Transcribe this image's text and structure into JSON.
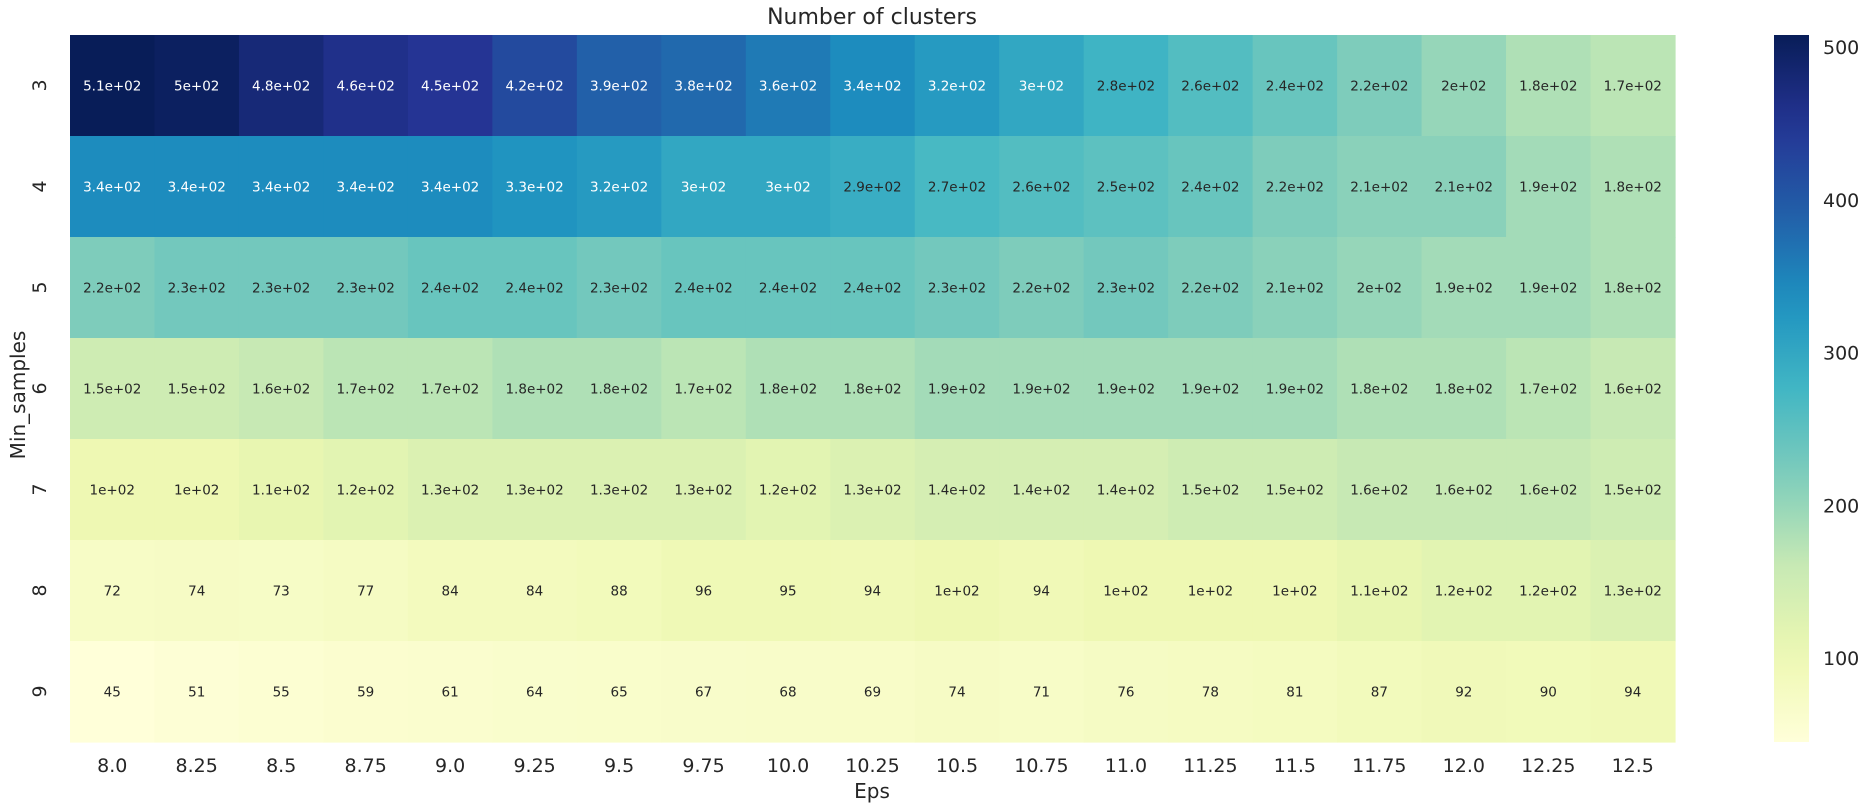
{
  "chart_data": {
    "type": "heatmap",
    "title": "Number of clusters",
    "xlabel": "Eps",
    "ylabel": "Min_samples",
    "x": [
      "8.0",
      "8.25",
      "8.5",
      "8.75",
      "9.0",
      "9.25",
      "9.5",
      "9.75",
      "10.0",
      "10.25",
      "10.5",
      "10.75",
      "11.0",
      "11.25",
      "11.5",
      "11.75",
      "12.0",
      "12.25",
      "12.5"
    ],
    "y": [
      "3",
      "4",
      "5",
      "6",
      "7",
      "8",
      "9"
    ],
    "values": [
      [
        508,
        500,
        478,
        460,
        450,
        420,
        390,
        380,
        360,
        340,
        320,
        300,
        280,
        260,
        240,
        220,
        200,
        180,
        170
      ],
      [
        340,
        340,
        340,
        340,
        340,
        330,
        320,
        300,
        300,
        290,
        270,
        260,
        250,
        240,
        220,
        210,
        210,
        190,
        180
      ],
      [
        220,
        230,
        230,
        230,
        240,
        240,
        230,
        240,
        240,
        240,
        230,
        220,
        230,
        220,
        210,
        200,
        190,
        190,
        180
      ],
      [
        150,
        150,
        160,
        170,
        170,
        180,
        180,
        170,
        180,
        180,
        190,
        190,
        190,
        190,
        190,
        180,
        180,
        170,
        160
      ],
      [
        100,
        100,
        110,
        120,
        130,
        130,
        130,
        130,
        120,
        130,
        140,
        140,
        140,
        150,
        150,
        160,
        160,
        160,
        150
      ],
      [
        72,
        74,
        73,
        77,
        84,
        84,
        88,
        96,
        95,
        94,
        100,
        94,
        100,
        100,
        100,
        110,
        120,
        120,
        130
      ],
      [
        45,
        51,
        55,
        59,
        61,
        64,
        65,
        67,
        68,
        69,
        74,
        71,
        76,
        78,
        81,
        87,
        92,
        90,
        94
      ]
    ],
    "annotations": [
      [
        "5.1e+02",
        "5e+02",
        "4.8e+02",
        "4.6e+02",
        "4.5e+02",
        "4.2e+02",
        "3.9e+02",
        "3.8e+02",
        "3.6e+02",
        "3.4e+02",
        "3.2e+02",
        "3e+02",
        "2.8e+02",
        "2.6e+02",
        "2.4e+02",
        "2.2e+02",
        "2e+02",
        "1.8e+02",
        "1.7e+02"
      ],
      [
        "3.4e+02",
        "3.4e+02",
        "3.4e+02",
        "3.4e+02",
        "3.4e+02",
        "3.3e+02",
        "3.2e+02",
        "3e+02",
        "3e+02",
        "2.9e+02",
        "2.7e+02",
        "2.6e+02",
        "2.5e+02",
        "2.4e+02",
        "2.2e+02",
        "2.1e+02",
        "2.1e+02",
        "1.9e+02",
        "1.8e+02"
      ],
      [
        "2.2e+02",
        "2.3e+02",
        "2.3e+02",
        "2.3e+02",
        "2.4e+02",
        "2.4e+02",
        "2.3e+02",
        "2.4e+02",
        "2.4e+02",
        "2.4e+02",
        "2.3e+02",
        "2.2e+02",
        "2.3e+02",
        "2.2e+02",
        "2.1e+02",
        "2e+02",
        "1.9e+02",
        "1.9e+02",
        "1.8e+02"
      ],
      [
        "1.5e+02",
        "1.5e+02",
        "1.6e+02",
        "1.7e+02",
        "1.7e+02",
        "1.8e+02",
        "1.8e+02",
        "1.7e+02",
        "1.8e+02",
        "1.8e+02",
        "1.9e+02",
        "1.9e+02",
        "1.9e+02",
        "1.9e+02",
        "1.9e+02",
        "1.8e+02",
        "1.8e+02",
        "1.7e+02",
        "1.6e+02"
      ],
      [
        "1e+02",
        "1e+02",
        "1.1e+02",
        "1.2e+02",
        "1.3e+02",
        "1.3e+02",
        "1.3e+02",
        "1.3e+02",
        "1.2e+02",
        "1.3e+02",
        "1.4e+02",
        "1.4e+02",
        "1.4e+02",
        "1.5e+02",
        "1.5e+02",
        "1.6e+02",
        "1.6e+02",
        "1.6e+02",
        "1.5e+02"
      ],
      [
        "72",
        "74",
        "73",
        "77",
        "84",
        "84",
        "88",
        "96",
        "95",
        "94",
        "1e+02",
        "94",
        "1e+02",
        "1e+02",
        "1e+02",
        "1.1e+02",
        "1.2e+02",
        "1.2e+02",
        "1.3e+02"
      ],
      [
        "45",
        "51",
        "55",
        "59",
        "61",
        "64",
        "65",
        "67",
        "68",
        "69",
        "74",
        "71",
        "76",
        "78",
        "81",
        "87",
        "92",
        "90",
        "94"
      ]
    ],
    "colormap": "YlGnBu",
    "colorbar": {
      "vmin": 45,
      "vmax": 508,
      "ticks": [
        100,
        200,
        300,
        400,
        500
      ],
      "tick_labels": [
        "100",
        "200",
        "300",
        "400",
        "500"
      ]
    },
    "grid": false,
    "legend": "colorbar-right"
  }
}
